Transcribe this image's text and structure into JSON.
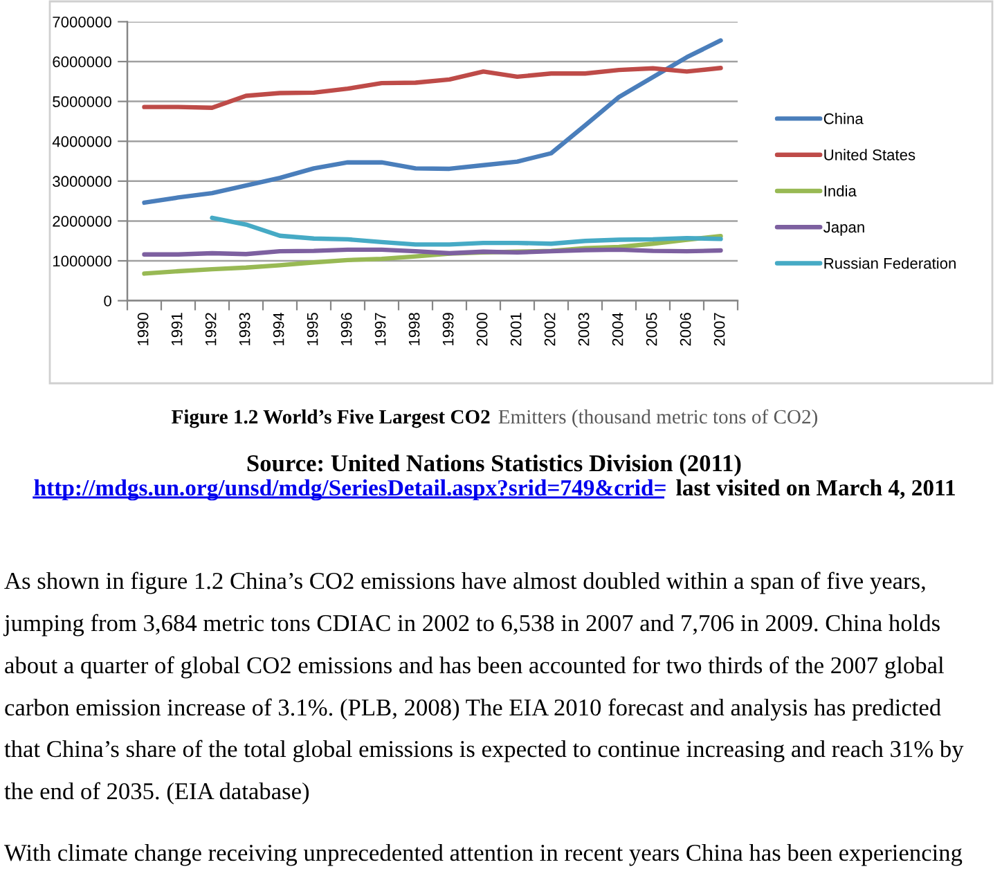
{
  "chart_data": {
    "type": "line",
    "categories": [
      "1990",
      "1991",
      "1992",
      "1993",
      "1994",
      "1995",
      "1996",
      "1997",
      "1998",
      "1999",
      "2000",
      "2001",
      "2002",
      "2003",
      "2004",
      "2005",
      "2006",
      "2007"
    ],
    "series": [
      {
        "name": "China",
        "color": "#4a7ebb",
        "values": [
          2460000,
          2590000,
          2700000,
          2890000,
          3080000,
          3320000,
          3470000,
          3470000,
          3320000,
          3310000,
          3400000,
          3490000,
          3700000,
          4400000,
          5110000,
          5610000,
          6110000,
          6530000
        ]
      },
      {
        "name": "United States",
        "color": "#be4b48",
        "values": [
          4860000,
          4860000,
          4840000,
          5140000,
          5210000,
          5220000,
          5320000,
          5460000,
          5470000,
          5550000,
          5750000,
          5620000,
          5700000,
          5700000,
          5790000,
          5830000,
          5750000,
          5840000
        ]
      },
      {
        "name": "India",
        "color": "#98b954",
        "values": [
          680000,
          740000,
          790000,
          830000,
          890000,
          960000,
          1020000,
          1050000,
          1110000,
          1180000,
          1210000,
          1230000,
          1250000,
          1320000,
          1350000,
          1430000,
          1530000,
          1620000
        ]
      },
      {
        "name": "Japan",
        "color": "#7d60a0",
        "values": [
          1160000,
          1160000,
          1190000,
          1170000,
          1240000,
          1250000,
          1280000,
          1280000,
          1240000,
          1190000,
          1230000,
          1210000,
          1240000,
          1270000,
          1280000,
          1250000,
          1240000,
          1260000
        ]
      },
      {
        "name": "Russian Federation",
        "color": "#46aac5",
        "values": [
          null,
          null,
          2080000,
          1910000,
          1630000,
          1560000,
          1540000,
          1470000,
          1410000,
          1410000,
          1450000,
          1450000,
          1430000,
          1500000,
          1530000,
          1540000,
          1570000,
          1550000
        ]
      }
    ],
    "ylim": [
      0,
      7000000
    ],
    "yticks": [
      0,
      1000000,
      2000000,
      3000000,
      4000000,
      5000000,
      6000000,
      7000000
    ],
    "grid": "y",
    "legend": "right",
    "annotations": [
      "Figure 1.2 World’s Five Largest CO2",
      "Emitters (thousand metric tons of CO2)",
      "Source: United Nations Statistics Division (2011)",
      "http://mdgs.un.org/unsd/mdg/SeriesDetail.aspx?srid=749&crid=",
      "last visited on March 4, 2011",
      "As shown in figure 1.2 China’s CO2 emissions have almost doubled within a span of five years,",
      "jumping from 3,684 metric tons CDIAC in 2002 to 6,538 in 2007 and 7,706 in 2009. China holds",
      "about a quarter of global CO2 emissions and has been accounted for two thirds of the 2007 global",
      "carbon emission increase of 3.1%. (PLB, 2008) The EIA 2010 forecast and analysis has predicted",
      "that China’s share of the total global emissions is expected to continue increasing and reach 31% by",
      "the end of 2035. (EIA database)",
      "With climate change receiving unprecedented attention in recent years China has been experiencing"
    ]
  }
}
